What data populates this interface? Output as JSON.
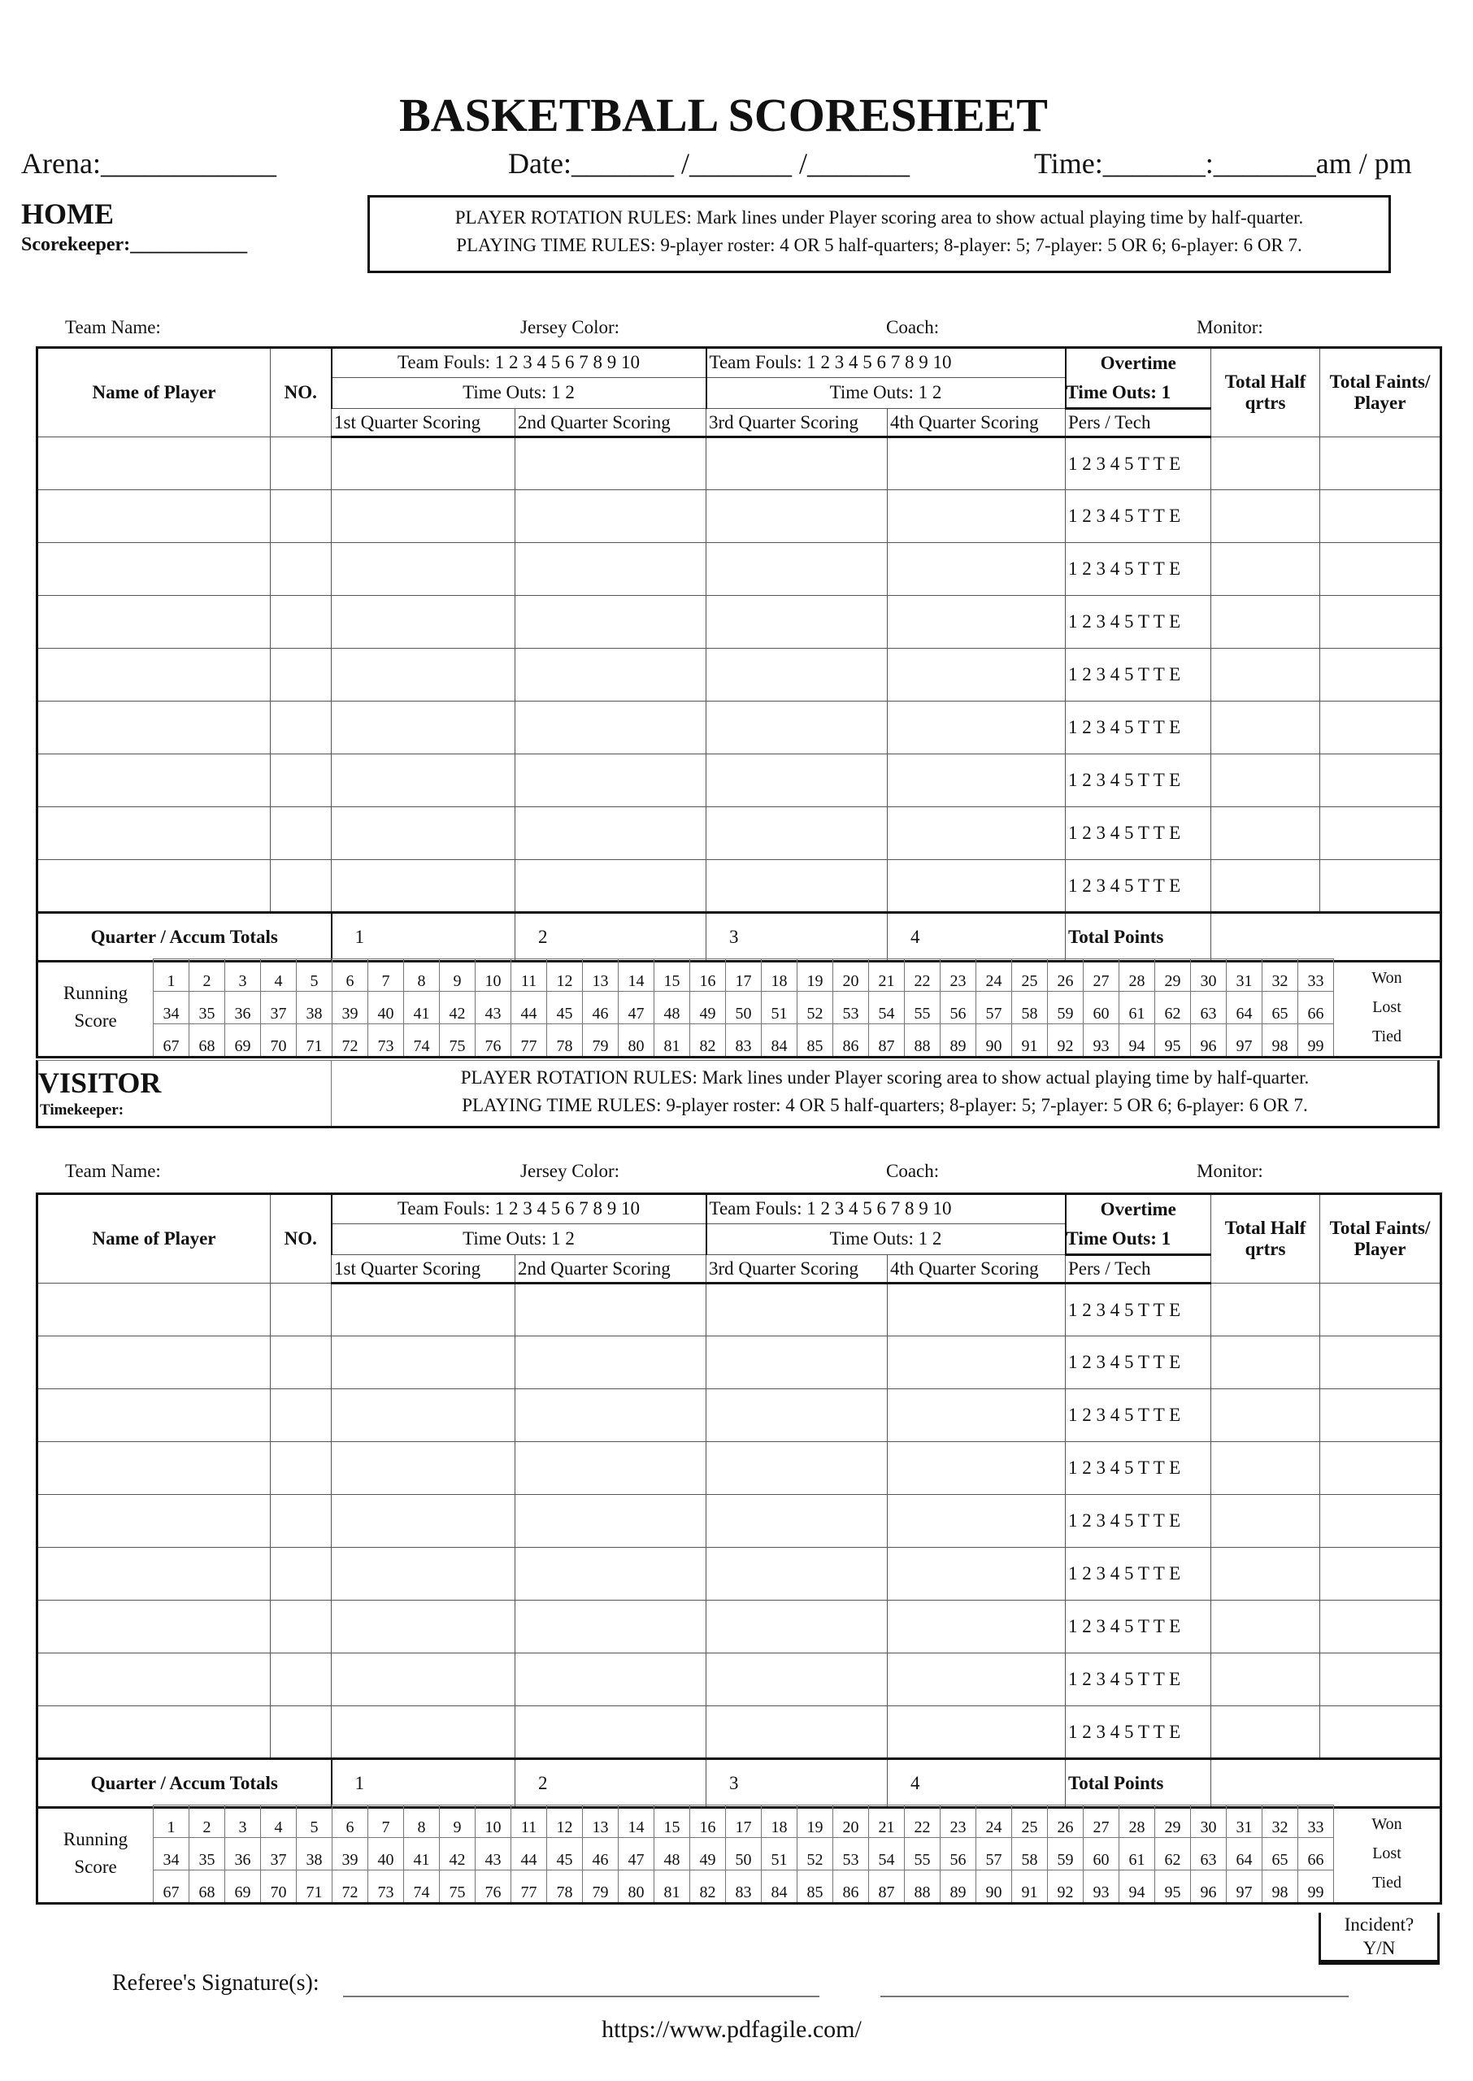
{
  "title": "BASKETBALL SCORESHEET",
  "header": {
    "arena": "Arena:____________",
    "date": "Date:_______ /_______ /_______",
    "time": "Time:_______:_______am / pm"
  },
  "home": {
    "label": "HOME",
    "keeper": "Scorekeeper:____________",
    "rules": [
      "PLAYER ROTATION RULES: Mark lines under Player scoring area to show actual playing time by half-quarter.",
      "PLAYING TIME RULES: 9-player roster:  4 OR 5 half-quarters;  8-player: 5;  7-player: 5 OR 6;  6-player: 6 OR 7."
    ]
  },
  "team_info": [
    "Team Name:",
    "Jersey Color:",
    "Coach:",
    "Monitor:"
  ],
  "table": {
    "name_header": "Name of Player",
    "no_header": "NO.",
    "team_fouls": "Team Fouls: 1 2 3 4 5 6 7 8 9 10",
    "time_outs": "Time Outs: 1 2",
    "quarters": [
      "1st Quarter Scoring",
      "2nd Quarter Scoring",
      "3rd Quarter Scoring",
      "4th Quarter Scoring"
    ],
    "overtime": "Overtime",
    "ot_time_outs": "Time Outs: 1",
    "pers_tech": "Pers / Tech",
    "total_half": "Total Half qrtrs",
    "total_faints": "Total Faints/ Player",
    "foul_marks": "1 2 3 4 5 T T E",
    "totals_label": "Quarter / Accum Totals",
    "quarter_numbers": [
      "1",
      "2",
      "3",
      "4"
    ],
    "total_points": "Total Points"
  },
  "running": {
    "label": [
      "Running",
      "Score"
    ],
    "rows": [
      [
        "1",
        "2",
        "3",
        "4",
        "5",
        "6",
        "7",
        "8",
        "9",
        "10",
        "11",
        "12",
        "13",
        "14",
        "15",
        "16",
        "17",
        "18",
        "19",
        "20",
        "21",
        "22",
        "23",
        "24",
        "25",
        "26",
        "27",
        "28",
        "29",
        "30",
        "31",
        "32",
        "33"
      ],
      [
        "34",
        "35",
        "36",
        "37",
        "38",
        "39",
        "40",
        "41",
        "42",
        "43",
        "44",
        "45",
        "46",
        "47",
        "48",
        "49",
        "50",
        "51",
        "52",
        "53",
        "54",
        "55",
        "56",
        "57",
        "58",
        "59",
        "60",
        "61",
        "62",
        "63",
        "64",
        "65",
        "66"
      ],
      [
        "67",
        "68",
        "69",
        "70",
        "71",
        "72",
        "73",
        "74",
        "75",
        "76",
        "77",
        "78",
        "79",
        "80",
        "81",
        "82",
        "83",
        "84",
        "85",
        "86",
        "87",
        "88",
        "89",
        "90",
        "91",
        "92",
        "93",
        "94",
        "95",
        "96",
        "97",
        "98",
        "99"
      ]
    ],
    "results": [
      "Won",
      "Lost",
      "Tied"
    ]
  },
  "visitor": {
    "label": "VISITOR",
    "keeper": "Timekeeper:"
  },
  "incident": [
    "Incident?",
    "Y/N"
  ],
  "referee": "Referee's Signature(s):",
  "url": "https://www.pdfagile.com/"
}
